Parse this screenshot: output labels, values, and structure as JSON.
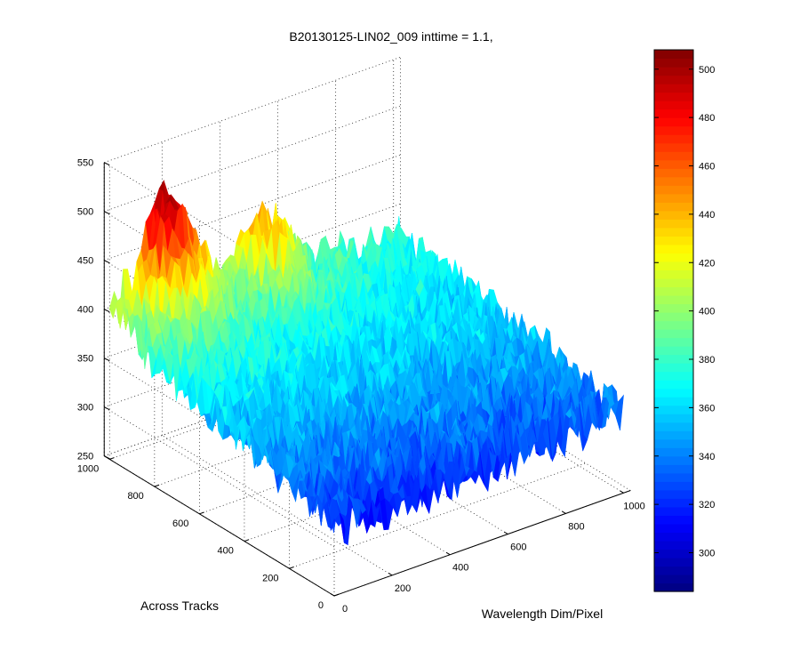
{
  "chart_data": {
    "type": "surface",
    "title": "B20130125-LIN02_009 inttime = 1.1,",
    "xlabel": "Wavelength Dim/Pixel",
    "ylabel": "Across Tracks",
    "zlabel": "",
    "x_ticks": [
      "0",
      "200",
      "400",
      "600",
      "800",
      "1000"
    ],
    "y_ticks": [
      "0",
      "200",
      "400",
      "600",
      "800",
      "1000"
    ],
    "z_ticks": [
      "250",
      "300",
      "350",
      "400",
      "450",
      "500",
      "550"
    ],
    "xlim": [
      0,
      1024
    ],
    "ylim": [
      0,
      1024
    ],
    "zlim": [
      250,
      550
    ],
    "grid": true,
    "colormap": "jet",
    "colorbar": {
      "ticks": [
        "300",
        "320",
        "340",
        "360",
        "380",
        "400",
        "420",
        "440",
        "460",
        "480",
        "500"
      ],
      "range": [
        284,
        508
      ]
    },
    "surface_summary": {
      "corner_values": {
        "x0_y0": 318,
        "x1000_y0": 332,
        "x0_y1000": 398,
        "x1000_y1000": 372
      },
      "noise_amplitude": 25,
      "hotspot": {
        "x": 190,
        "y": 980,
        "peak": 500
      },
      "ridge": {
        "x": 520,
        "y": 1000,
        "peak": 440
      }
    }
  }
}
